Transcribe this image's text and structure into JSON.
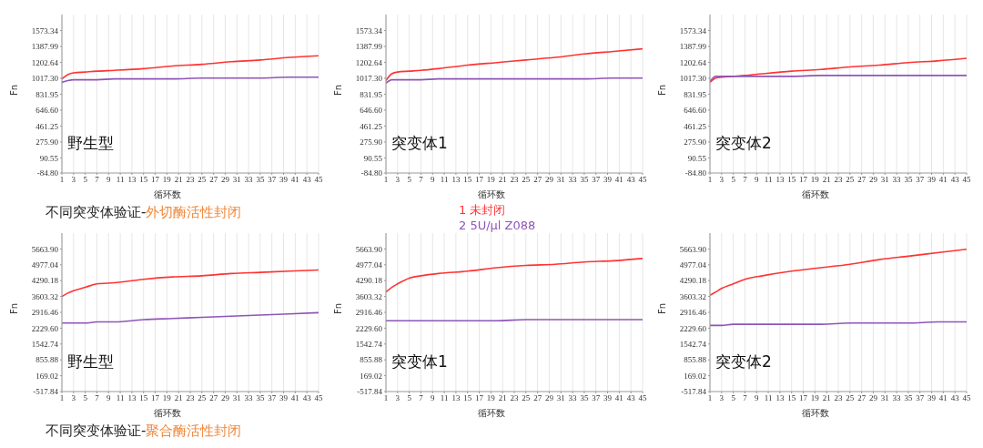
{
  "chart_data": [
    {
      "type": "line",
      "title": "野生型",
      "xlabel": "循环数",
      "ylabel": "Fn",
      "x": [
        1,
        2,
        3,
        5,
        7,
        10,
        15,
        20,
        25,
        30,
        35,
        40,
        45
      ],
      "xlim": [
        1,
        45
      ],
      "xticks": [
        1,
        3,
        5,
        7,
        9,
        11,
        13,
        15,
        17,
        19,
        21,
        23,
        25,
        27,
        29,
        31,
        33,
        35,
        37,
        39,
        41,
        43,
        45
      ],
      "ylim": [
        -84.8,
        1758.69
      ],
      "yticks": [
        {
          "value": -84.8,
          "label": "-84.80"
        },
        {
          "value": 90.55,
          "label": "90.55"
        },
        {
          "value": 275.9,
          "label": "275.90"
        },
        {
          "value": 461.25,
          "label": "461.25"
        },
        {
          "value": 646.6,
          "label": "646.60"
        },
        {
          "value": 831.95,
          "label": "831.95"
        },
        {
          "value": 1017.3,
          "label": "1017.30"
        },
        {
          "value": 1202.64,
          "label": "1202.64"
        },
        {
          "value": 1387.99,
          "label": "1387.99"
        },
        {
          "value": 1573.34,
          "label": "1573.34"
        }
      ],
      "grid": true,
      "annotations": [
        "不同突变体验证-外切酶活性封闭"
      ],
      "series": [
        {
          "color": "#ff3333",
          "values": [
            1010,
            1060,
            1080,
            1090,
            1100,
            1110,
            1130,
            1160,
            1180,
            1210,
            1230,
            1260,
            1280
          ]
        },
        {
          "color": "#8e55b8",
          "values": [
            970,
            990,
            1000,
            1000,
            1000,
            1010,
            1010,
            1010,
            1020,
            1020,
            1020,
            1030,
            1030
          ]
        }
      ]
    },
    {
      "type": "line",
      "title": "突变体1",
      "xlabel": "循环数",
      "ylabel": "Fn",
      "x": [
        1,
        2,
        3,
        5,
        7,
        10,
        15,
        20,
        25,
        30,
        35,
        40,
        45
      ],
      "xlim": [
        1,
        45
      ],
      "xticks": [
        1,
        3,
        5,
        7,
        9,
        11,
        13,
        15,
        17,
        19,
        21,
        23,
        25,
        27,
        29,
        31,
        33,
        35,
        37,
        39,
        41,
        43,
        45
      ],
      "ylim": [
        -84.8,
        1758.69
      ],
      "yticks": [
        {
          "value": -84.8,
          "label": "-84.80"
        },
        {
          "value": 90.55,
          "label": "90.55"
        },
        {
          "value": 275.9,
          "label": "275.90"
        },
        {
          "value": 461.25,
          "label": "461.25"
        },
        {
          "value": 646.6,
          "label": "646.60"
        },
        {
          "value": 831.95,
          "label": "831.95"
        },
        {
          "value": 1017.3,
          "label": "1017.30"
        },
        {
          "value": 1202.64,
          "label": "1202.64"
        },
        {
          "value": 1387.99,
          "label": "1387.99"
        },
        {
          "value": 1573.34,
          "label": "1573.34"
        }
      ],
      "grid": true,
      "legend": "bottom",
      "series": [
        {
          "name": "1 未封闭",
          "color": "#ff3333",
          "values": [
            990,
            1070,
            1090,
            1100,
            1110,
            1130,
            1170,
            1200,
            1230,
            1260,
            1300,
            1330,
            1360
          ]
        },
        {
          "name": "2 5U/μl Z088",
          "color": "#8e55b8",
          "values": [
            960,
            1000,
            1000,
            1000,
            1000,
            1010,
            1010,
            1010,
            1010,
            1010,
            1010,
            1020,
            1020
          ]
        }
      ]
    },
    {
      "type": "line",
      "title": "突变体2",
      "xlabel": "循环数",
      "ylabel": "Fn",
      "x": [
        1,
        2,
        3,
        5,
        7,
        10,
        15,
        20,
        25,
        30,
        35,
        40,
        45
      ],
      "xlim": [
        1,
        45
      ],
      "xticks": [
        1,
        3,
        5,
        7,
        9,
        11,
        13,
        15,
        17,
        19,
        21,
        23,
        25,
        27,
        29,
        31,
        33,
        35,
        37,
        39,
        41,
        43,
        45
      ],
      "ylim": [
        -84.8,
        1758.69
      ],
      "yticks": [
        {
          "value": -84.8,
          "label": "-84.80"
        },
        {
          "value": 90.55,
          "label": "90.55"
        },
        {
          "value": 275.9,
          "label": "275.90"
        },
        {
          "value": 461.25,
          "label": "461.25"
        },
        {
          "value": 646.6,
          "label": "646.60"
        },
        {
          "value": 831.95,
          "label": "831.95"
        },
        {
          "value": 1017.3,
          "label": "1017.30"
        },
        {
          "value": 1202.64,
          "label": "1202.64"
        },
        {
          "value": 1387.99,
          "label": "1387.99"
        },
        {
          "value": 1573.34,
          "label": "1573.34"
        }
      ],
      "grid": true,
      "series": [
        {
          "color": "#ff3333",
          "values": [
            970,
            1020,
            1030,
            1040,
            1050,
            1070,
            1100,
            1120,
            1150,
            1170,
            1200,
            1220,
            1250
          ]
        },
        {
          "color": "#8e55b8",
          "values": [
            980,
            1040,
            1040,
            1040,
            1040,
            1040,
            1040,
            1050,
            1050,
            1050,
            1050,
            1050,
            1050
          ]
        }
      ]
    },
    {
      "type": "line",
      "title": "野生型",
      "xlabel": "循环数",
      "ylabel": "Fn",
      "x": [
        1,
        2,
        3,
        5,
        7,
        10,
        15,
        20,
        25,
        30,
        35,
        40,
        45
      ],
      "xlim": [
        1,
        45
      ],
      "xticks": [
        1,
        3,
        5,
        7,
        9,
        11,
        13,
        15,
        17,
        19,
        21,
        23,
        25,
        27,
        29,
        31,
        33,
        35,
        37,
        39,
        41,
        43,
        45
      ],
      "ylim": [
        -517.84,
        6350.76
      ],
      "yticks": [
        {
          "value": -517.84,
          "label": "-517.84"
        },
        {
          "value": 169.02,
          "label": "169.02"
        },
        {
          "value": 855.88,
          "label": "855.88"
        },
        {
          "value": 1542.74,
          "label": "1542.74"
        },
        {
          "value": 2229.6,
          "label": "2229.60"
        },
        {
          "value": 2916.46,
          "label": "2916.46"
        },
        {
          "value": 3603.32,
          "label": "3603.32"
        },
        {
          "value": 4290.18,
          "label": "4290.18"
        },
        {
          "value": 4977.04,
          "label": "4977.04"
        },
        {
          "value": 5663.9,
          "label": "5663.90"
        }
      ],
      "grid": true,
      "annotations": [
        "不同突变体验证-聚合酶活性封闭"
      ],
      "series": [
        {
          "color": "#ff3333",
          "values": [
            3600,
            3750,
            3850,
            4000,
            4150,
            4200,
            4350,
            4450,
            4500,
            4600,
            4650,
            4700,
            4750
          ]
        },
        {
          "color": "#8e55b8",
          "values": [
            2450,
            2450,
            2450,
            2450,
            2500,
            2500,
            2600,
            2650,
            2700,
            2750,
            2800,
            2850,
            2900
          ]
        }
      ]
    },
    {
      "type": "line",
      "title": "突变体1",
      "xlabel": "循环数",
      "ylabel": "Fn",
      "x": [
        1,
        2,
        3,
        5,
        7,
        10,
        15,
        20,
        25,
        30,
        35,
        40,
        45
      ],
      "xlim": [
        1,
        45
      ],
      "xticks": [
        1,
        3,
        5,
        7,
        9,
        11,
        13,
        15,
        17,
        19,
        21,
        23,
        25,
        27,
        29,
        31,
        33,
        35,
        37,
        39,
        41,
        43,
        45
      ],
      "ylim": [
        -517.84,
        6350.76
      ],
      "yticks": [
        {
          "value": -517.84,
          "label": "-517.84"
        },
        {
          "value": 169.02,
          "label": "169.02"
        },
        {
          "value": 855.88,
          "label": "855.88"
        },
        {
          "value": 1542.74,
          "label": "1542.74"
        },
        {
          "value": 2229.6,
          "label": "2229.60"
        },
        {
          "value": 2916.46,
          "label": "2916.46"
        },
        {
          "value": 3603.32,
          "label": "3603.32"
        },
        {
          "value": 4290.18,
          "label": "4290.18"
        },
        {
          "value": 4977.04,
          "label": "4977.04"
        },
        {
          "value": 5663.9,
          "label": "5663.90"
        }
      ],
      "grid": true,
      "series": [
        {
          "color": "#ff3333",
          "values": [
            3800,
            4000,
            4150,
            4400,
            4500,
            4600,
            4700,
            4850,
            4950,
            5000,
            5100,
            5150,
            5250
          ]
        },
        {
          "color": "#8e55b8",
          "values": [
            2550,
            2550,
            2550,
            2550,
            2550,
            2550,
            2550,
            2550,
            2600,
            2600,
            2600,
            2600,
            2600
          ]
        }
      ]
    },
    {
      "type": "line",
      "title": "突变体2",
      "xlabel": "循环数",
      "ylabel": "Fn",
      "x": [
        1,
        2,
        3,
        5,
        7,
        10,
        15,
        20,
        25,
        30,
        35,
        40,
        45
      ],
      "xlim": [
        1,
        45
      ],
      "xticks": [
        1,
        3,
        5,
        7,
        9,
        11,
        13,
        15,
        17,
        19,
        21,
        23,
        25,
        27,
        29,
        31,
        33,
        35,
        37,
        39,
        41,
        43,
        45
      ],
      "ylim": [
        -517.84,
        6350.76
      ],
      "yticks": [
        {
          "value": -517.84,
          "label": "-517.84"
        },
        {
          "value": 169.02,
          "label": "169.02"
        },
        {
          "value": 855.88,
          "label": "855.88"
        },
        {
          "value": 1542.74,
          "label": "1542.74"
        },
        {
          "value": 2229.6,
          "label": "2229.60"
        },
        {
          "value": 2916.46,
          "label": "2916.46"
        },
        {
          "value": 3603.32,
          "label": "3603.32"
        },
        {
          "value": 4290.18,
          "label": "4290.18"
        },
        {
          "value": 4977.04,
          "label": "4977.04"
        },
        {
          "value": 5663.9,
          "label": "5663.90"
        }
      ],
      "grid": true,
      "series": [
        {
          "color": "#ff3333",
          "values": [
            3650,
            3800,
            3950,
            4150,
            4350,
            4500,
            4700,
            4850,
            5000,
            5200,
            5350,
            5500,
            5650
          ]
        },
        {
          "color": "#8e55b8",
          "values": [
            2350,
            2350,
            2350,
            2400,
            2400,
            2400,
            2400,
            2400,
            2450,
            2450,
            2450,
            2500,
            2500
          ]
        }
      ]
    }
  ]
}
